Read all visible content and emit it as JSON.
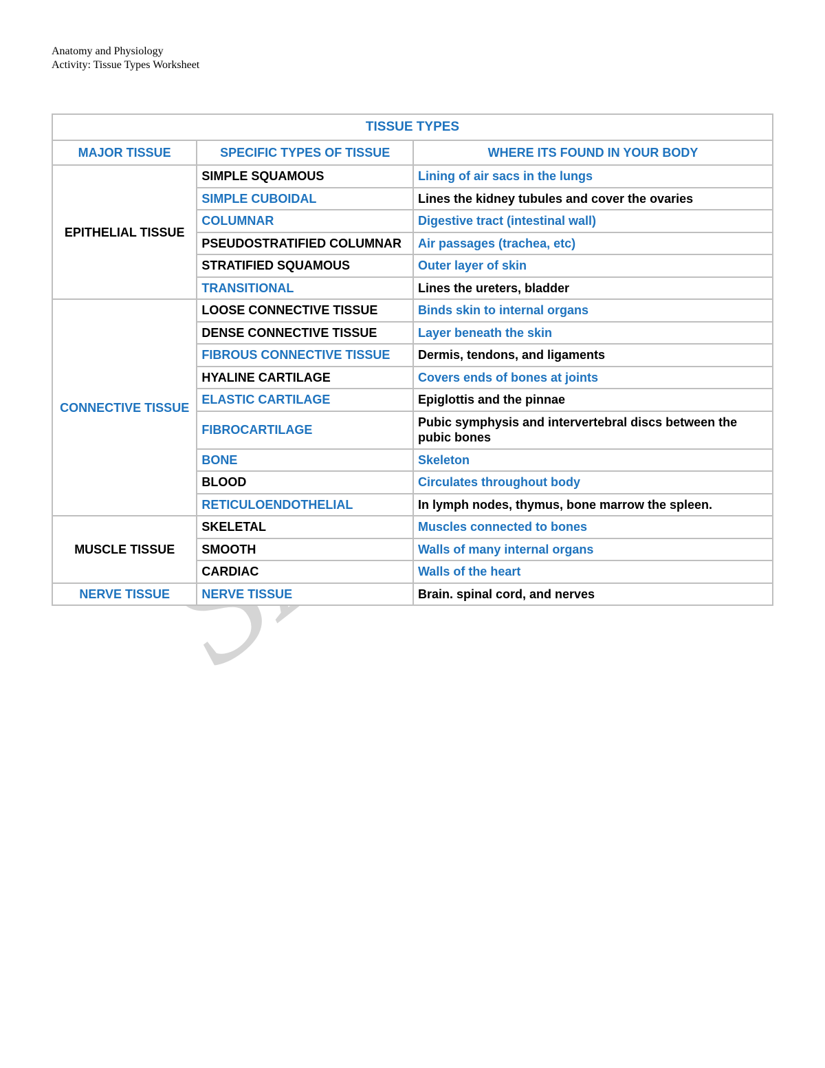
{
  "header": {
    "line1": "Anatomy and Physiology",
    "line2": "Activity: Tissue Types Worksheet"
  },
  "watermark": "SAMPLE",
  "colors": {
    "blue": "#1e73be",
    "black": "#000000",
    "grid": "#bfbfbf",
    "cellBg": "#ffffff",
    "watermark": "#d5d5d5"
  },
  "table": {
    "title": "TISSUE TYPES",
    "columns": [
      "MAJOR TISSUE",
      "SPECIFIC TYPES OF TISSUE",
      "WHERE ITS FOUND IN YOUR BODY"
    ],
    "groups": [
      {
        "major": "EPITHELIAL TISSUE",
        "majorColor": "black",
        "rows": [
          {
            "type": "SIMPLE SQUAMOUS",
            "typeColor": "black",
            "where": "Lining of air sacs in the lungs",
            "whereColor": "blue"
          },
          {
            "type": "SIMPLE CUBOIDAL",
            "typeColor": "blue",
            "where": "Lines the kidney tubules and cover the ovaries",
            "whereColor": "black"
          },
          {
            "type": "COLUMNAR",
            "typeColor": "blue",
            "where": "Digestive tract (intestinal wall)",
            "whereColor": "blue"
          },
          {
            "type": "PSEUDOSTRATIFIED COLUMNAR",
            "typeColor": "black",
            "where": "Air passages (trachea, etc)",
            "whereColor": "blue"
          },
          {
            "type": "STRATIFIED SQUAMOUS",
            "typeColor": "black",
            "where": "Outer layer of skin",
            "whereColor": "blue"
          },
          {
            "type": "TRANSITIONAL",
            "typeColor": "blue",
            "where": "Lines the ureters, bladder",
            "whereColor": "black"
          }
        ]
      },
      {
        "major": "CONNECTIVE TISSUE",
        "majorColor": "blue",
        "rows": [
          {
            "type": "LOOSE CONNECTIVE TISSUE",
            "typeColor": "black",
            "where": "Binds skin to internal organs",
            "whereColor": "blue"
          },
          {
            "type": "DENSE CONNECTIVE TISSUE",
            "typeColor": "black",
            "where": "Layer beneath the skin",
            "whereColor": "blue"
          },
          {
            "type": "FIBROUS CONNECTIVE TISSUE",
            "typeColor": "blue",
            "where": "Dermis, tendons, and ligaments",
            "whereColor": "black"
          },
          {
            "type": "HYALINE CARTILAGE",
            "typeColor": "black",
            "where": "Covers ends of bones at joints",
            "whereColor": "blue"
          },
          {
            "type": "ELASTIC CARTILAGE",
            "typeColor": "blue",
            "where": "Epiglottis and the pinnae",
            "whereColor": "black"
          },
          {
            "type": "FIBROCARTILAGE",
            "typeColor": "blue",
            "where": " Pubic symphysis and intervertebral discs between the pubic bones",
            "whereColor": "black"
          },
          {
            "type": "BONE",
            "typeColor": "blue",
            "where": "Skeleton",
            "whereColor": "blue"
          },
          {
            "type": "BLOOD",
            "typeColor": "black",
            "where": "Circulates throughout body",
            "whereColor": "blue"
          },
          {
            "type": "RETICULOENDOTHELIAL",
            "typeColor": "blue",
            "where": "In lymph nodes, thymus, bone marrow the spleen.",
            "whereColor": "black"
          }
        ]
      },
      {
        "major": "MUSCLE TISSUE",
        "majorColor": "black",
        "rows": [
          {
            "type": "SKELETAL",
            "typeColor": "black",
            "where": "Muscles connected to bones",
            "whereColor": "blue"
          },
          {
            "type": "SMOOTH",
            "typeColor": "black",
            "where": "Walls of many internal organs",
            "whereColor": "blue"
          },
          {
            "type": "CARDIAC",
            "typeColor": "black",
            "where": "Walls of the heart",
            "whereColor": "blue"
          }
        ]
      },
      {
        "major": "NERVE TISSUE",
        "majorColor": "blue",
        "rows": [
          {
            "type": "NERVE TISSUE",
            "typeColor": "blue",
            "where": "Brain. spinal cord, and nerves",
            "whereColor": "black"
          }
        ]
      }
    ]
  }
}
